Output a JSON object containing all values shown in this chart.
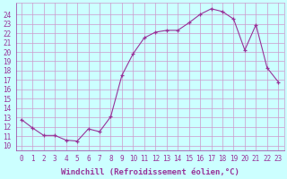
{
  "x": [
    0,
    1,
    2,
    3,
    4,
    5,
    6,
    7,
    8,
    9,
    10,
    11,
    12,
    13,
    14,
    15,
    16,
    17,
    18,
    19,
    20,
    21,
    22,
    23
  ],
  "y": [
    12.8,
    11.9,
    11.1,
    11.1,
    10.6,
    10.5,
    11.8,
    11.5,
    13.1,
    17.5,
    19.8,
    21.5,
    22.1,
    22.3,
    22.3,
    23.1,
    24.0,
    24.6,
    24.3,
    23.5,
    20.2,
    22.9,
    18.3,
    16.8
  ],
  "line_color": "#993399",
  "marker": "+",
  "bg_color": "#ccffff",
  "grid_color": "#cc99cc",
  "axis_color": "#993399",
  "xlabel": "Windchill (Refroidissement éolien,°C)",
  "xlim": [
    -0.5,
    23.5
  ],
  "ylim": [
    9.5,
    25.2
  ],
  "yticks": [
    10,
    11,
    12,
    13,
    14,
    15,
    16,
    17,
    18,
    19,
    20,
    21,
    22,
    23,
    24
  ],
  "xticks": [
    0,
    1,
    2,
    3,
    4,
    5,
    6,
    7,
    8,
    9,
    10,
    11,
    12,
    13,
    14,
    15,
    16,
    17,
    18,
    19,
    20,
    21,
    22,
    23
  ],
  "label_fontsize": 6.5,
  "tick_fontsize": 5.5
}
